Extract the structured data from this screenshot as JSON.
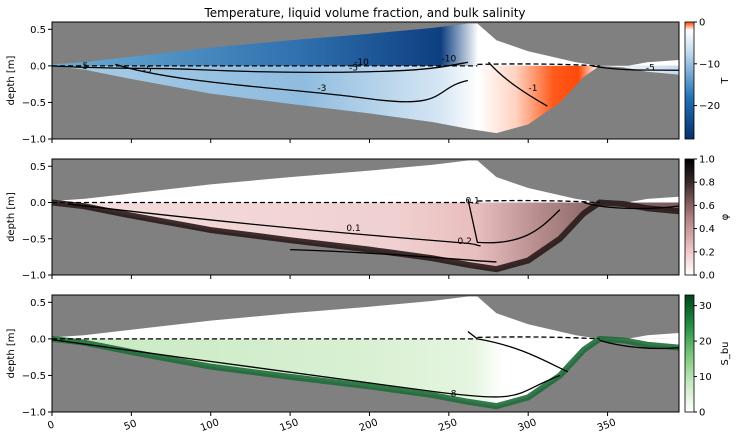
{
  "title": "Temperature, liquid volume fraction, and bulk salinity",
  "chart_data": [
    {
      "type": "heatmap",
      "panel": "temperature",
      "ylabel": "depth [m]",
      "xlim": [
        0,
        395
      ],
      "ylim": [
        -1.0,
        0.6
      ],
      "yticks": [
        "0.5",
        "0.0",
        "−0.5",
        "−1.0"
      ],
      "background": "#808080",
      "grid": false,
      "colorbar": {
        "label": "T",
        "range": [
          -28,
          0
        ],
        "ticks": [
          "0",
          "−10",
          "−20"
        ],
        "colors": [
          "#08306b",
          "#2171b5",
          "#c6dbef",
          "#ffffff",
          "#ff4500"
        ]
      },
      "contour_labels": [
        "-10",
        "-10",
        "-5",
        "-5",
        "-5",
        "-3",
        "-1",
        "-5"
      ]
    },
    {
      "type": "heatmap",
      "panel": "liquid volume fraction",
      "ylabel": "depth [m]",
      "xlim": [
        0,
        395
      ],
      "ylim": [
        -1.0,
        0.6
      ],
      "yticks": [
        "0.5",
        "0.0",
        "−0.5",
        "−1.0"
      ],
      "background": "#808080",
      "grid": false,
      "colorbar": {
        "label": "φ",
        "range": [
          0,
          1
        ],
        "ticks": [
          "1.0",
          "0.8",
          "0.6",
          "0.4",
          "0.2",
          "0.0"
        ],
        "colors": [
          "#ffffff",
          "#f2c9c9",
          "#b07f7f",
          "#5a4040",
          "#000000"
        ]
      },
      "contour_labels": [
        "0.1",
        "0.1",
        "0.2"
      ]
    },
    {
      "type": "heatmap",
      "panel": "bulk salinity",
      "ylabel": "depth [m]",
      "xlabel": "",
      "xlim": [
        0,
        395
      ],
      "ylim": [
        -1.0,
        0.6
      ],
      "yticks": [
        "0.5",
        "0.0",
        "−0.5",
        "−1.0"
      ],
      "xticks": [
        "0",
        "50",
        "100",
        "150",
        "200",
        "250",
        "300",
        "350"
      ],
      "background": "#808080",
      "grid": false,
      "colorbar": {
        "label": "S_bu",
        "range": [
          0,
          33
        ],
        "ticks": [
          "30",
          "20",
          "10",
          "0"
        ],
        "colors": [
          "#ffffff",
          "#c7e9c0",
          "#74c476",
          "#238b45",
          "#00441b"
        ]
      },
      "contour_labels": [
        "8"
      ]
    }
  ],
  "profile": {
    "x_surface": [
      0,
      20,
      60,
      100,
      150,
      200,
      240,
      262,
      268,
      280,
      300,
      330,
      345,
      360,
      375,
      395
    ],
    "y_surface": [
      0.02,
      0.05,
      0.15,
      0.25,
      0.35,
      0.44,
      0.52,
      0.58,
      0.58,
      0.35,
      0.2,
      0.05,
      0.0,
      -0.01,
      0.05,
      0.08
    ],
    "x_bottom": [
      0,
      20,
      50,
      100,
      150,
      200,
      240,
      262,
      280,
      300,
      320,
      335,
      345,
      360,
      375,
      395
    ],
    "y_bottom": [
      0.0,
      -0.05,
      -0.18,
      -0.38,
      -0.52,
      -0.65,
      -0.77,
      -0.86,
      -0.92,
      -0.8,
      -0.5,
      -0.15,
      0.0,
      -0.02,
      -0.08,
      -0.12
    ]
  }
}
